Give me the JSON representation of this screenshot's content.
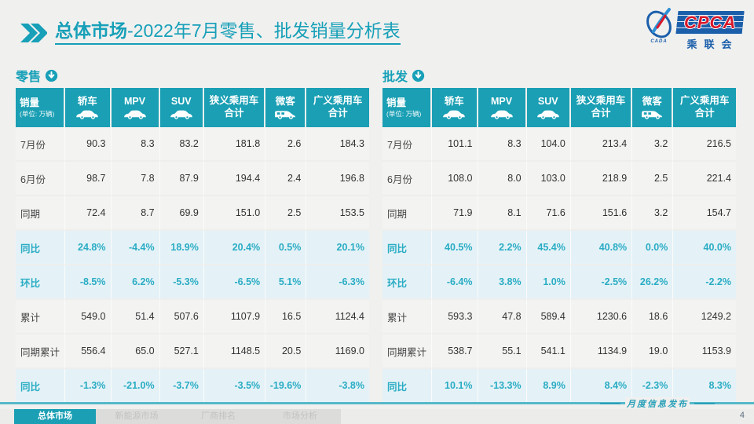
{
  "header": {
    "title_emphasis": "总体市场",
    "title_rest": "-2022年7月零售、批发销量分析表",
    "logo": {
      "brand": "CPCA",
      "brand_cn": "乘联会",
      "emblem_caption": "CADA"
    }
  },
  "table_columns": {
    "first": {
      "label": "销量",
      "unit": "(单位: 万辆)"
    },
    "cols": [
      {
        "label": "轿车",
        "line2": "",
        "icon": "sedan-icon"
      },
      {
        "label": "MPV",
        "line2": "",
        "icon": "mpv-icon"
      },
      {
        "label": "SUV",
        "line2": "",
        "icon": "suv-icon"
      },
      {
        "label": "狭义乘用车",
        "line2": "合计",
        "icon": ""
      },
      {
        "label": "微客",
        "line2": "",
        "icon": "microvan-icon"
      },
      {
        "label": "广义乘用车",
        "line2": "合计",
        "icon": ""
      }
    ]
  },
  "tables": [
    {
      "title": "零售",
      "rows": [
        {
          "label": "7月份",
          "highlight": false,
          "values": [
            "90.3",
            "8.3",
            "83.2",
            "181.8",
            "2.6",
            "184.3"
          ]
        },
        {
          "label": "6月份",
          "highlight": false,
          "values": [
            "98.7",
            "7.8",
            "87.9",
            "194.4",
            "2.4",
            "196.8"
          ]
        },
        {
          "label": "同期",
          "highlight": false,
          "values": [
            "72.4",
            "8.7",
            "69.9",
            "151.0",
            "2.5",
            "153.5"
          ]
        },
        {
          "label": "同比",
          "highlight": true,
          "values": [
            "24.8%",
            "-4.4%",
            "18.9%",
            "20.4%",
            "0.5%",
            "20.1%"
          ]
        },
        {
          "label": "环比",
          "highlight": true,
          "values": [
            "-8.5%",
            "6.2%",
            "-5.3%",
            "-6.5%",
            "5.1%",
            "-6.3%"
          ]
        },
        {
          "label": "累计",
          "highlight": false,
          "values": [
            "549.0",
            "51.4",
            "507.6",
            "1107.9",
            "16.5",
            "1124.4"
          ]
        },
        {
          "label": "同期累计",
          "highlight": false,
          "values": [
            "556.4",
            "65.0",
            "527.1",
            "1148.5",
            "20.5",
            "1169.0"
          ]
        },
        {
          "label": "同比",
          "highlight": true,
          "values": [
            "-1.3%",
            "-21.0%",
            "-3.7%",
            "-3.5%",
            "-19.6%",
            "-3.8%"
          ]
        }
      ]
    },
    {
      "title": "批发",
      "rows": [
        {
          "label": "7月份",
          "highlight": false,
          "values": [
            "101.1",
            "8.3",
            "104.0",
            "213.4",
            "3.2",
            "216.5"
          ]
        },
        {
          "label": "6月份",
          "highlight": false,
          "values": [
            "108.0",
            "8.0",
            "103.0",
            "218.9",
            "2.5",
            "221.4"
          ]
        },
        {
          "label": "同期",
          "highlight": false,
          "values": [
            "71.9",
            "8.1",
            "71.6",
            "151.6",
            "3.2",
            "154.7"
          ]
        },
        {
          "label": "同比",
          "highlight": true,
          "values": [
            "40.5%",
            "2.2%",
            "45.4%",
            "40.8%",
            "0.0%",
            "40.0%"
          ]
        },
        {
          "label": "环比",
          "highlight": true,
          "values": [
            "-6.4%",
            "3.8%",
            "1.0%",
            "-2.5%",
            "26.2%",
            "-2.2%"
          ]
        },
        {
          "label": "累计",
          "highlight": false,
          "values": [
            "593.3",
            "47.8",
            "589.4",
            "1230.6",
            "18.6",
            "1249.2"
          ]
        },
        {
          "label": "同期累计",
          "highlight": false,
          "values": [
            "538.7",
            "55.1",
            "541.1",
            "1134.9",
            "19.0",
            "1153.9"
          ]
        },
        {
          "label": "同比",
          "highlight": true,
          "values": [
            "10.1%",
            "-13.3%",
            "8.9%",
            "8.4%",
            "-2.3%",
            "8.3%"
          ]
        }
      ]
    }
  ],
  "footer": {
    "tabs": [
      {
        "label": "总体市场",
        "active": true
      },
      {
        "label": "新能源市场",
        "active": false
      },
      {
        "label": "厂商排名",
        "active": false
      },
      {
        "label": "市场分析",
        "active": false
      }
    ],
    "note": "月度信息发布",
    "page_number": "4"
  },
  "colors": {
    "accent_teal": "#1A9FB4",
    "title_teal": "#17A0B8",
    "percent_text": "#2AACC4",
    "highlight_row_bg": "#E4F2F7",
    "logo_blue": "#1B5FAA",
    "logo_red": "#D7182A"
  }
}
